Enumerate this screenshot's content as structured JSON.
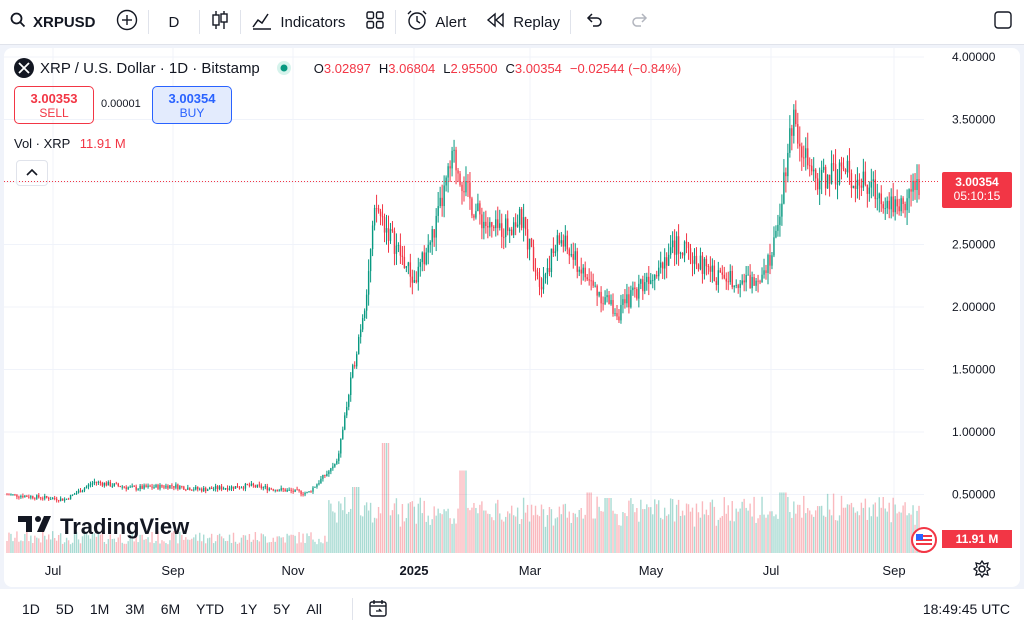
{
  "toolbar": {
    "symbol": "XRPUSD",
    "interval": "D",
    "indicators_label": "Indicators",
    "alert_label": "Alert",
    "replay_label": "Replay"
  },
  "legend": {
    "title": "XRP / U.S. Dollar · 1D · Bitstamp",
    "o_label": "O",
    "o_value": "3.02897",
    "h_label": "H",
    "h_value": "3.06804",
    "l_label": "L",
    "l_value": "2.95500",
    "c_label": "C",
    "c_value": "3.00354",
    "change": "−0.02544 (−0.84%)"
  },
  "trade": {
    "sell_price": "3.00353",
    "sell_label": "SELL",
    "spread": "0.00001",
    "buy_price": "3.00354",
    "buy_label": "BUY"
  },
  "volume": {
    "label": "Vol · XRP",
    "value": "11.91 M"
  },
  "branding": {
    "logo_text": "TradingView"
  },
  "price_label": {
    "price": "3.00354",
    "countdown": "05:10:15"
  },
  "volume_label": "11.91 M",
  "timeframes": [
    "1D",
    "5D",
    "1M",
    "3M",
    "6M",
    "YTD",
    "1Y",
    "5Y",
    "All"
  ],
  "clock": "18:49:45 UTC",
  "colors": {
    "up": "#089981",
    "down": "#f23645",
    "accent": "#2962ff"
  },
  "chart_data": {
    "type": "candlestick",
    "y_ticks": [
      "4.00000",
      "3.50000",
      "3.00000",
      "2.50000",
      "2.00000",
      "1.50000",
      "1.00000",
      "0.50000"
    ],
    "x_ticks": [
      "Jul",
      "Sep",
      "Nov",
      "2025",
      "Mar",
      "May",
      "Jul",
      "Sep"
    ],
    "ylim": [
      0.0,
      4.0
    ],
    "last_price": 3.00354,
    "keypoints": [
      {
        "x": 0.0,
        "y": 0.5
      },
      {
        "x": 0.06,
        "y": 0.46
      },
      {
        "x": 0.09,
        "y": 0.6
      },
      {
        "x": 0.13,
        "y": 0.55
      },
      {
        "x": 0.17,
        "y": 0.57
      },
      {
        "x": 0.2,
        "y": 0.54
      },
      {
        "x": 0.25,
        "y": 0.57
      },
      {
        "x": 0.31,
        "y": 0.51
      },
      {
        "x": 0.34,
        "y": 0.75
      },
      {
        "x": 0.37,
        "y": 2.1
      },
      {
        "x": 0.38,
        "y": 2.8
      },
      {
        "x": 0.42,
        "y": 2.2
      },
      {
        "x": 0.44,
        "y": 2.6
      },
      {
        "x": 0.46,
        "y": 3.2
      },
      {
        "x": 0.48,
        "y": 2.8
      },
      {
        "x": 0.5,
        "y": 2.6
      },
      {
        "x": 0.53,
        "y": 2.7
      },
      {
        "x": 0.55,
        "y": 2.2
      },
      {
        "x": 0.57,
        "y": 2.55
      },
      {
        "x": 0.6,
        "y": 2.2
      },
      {
        "x": 0.63,
        "y": 1.95
      },
      {
        "x": 0.65,
        "y": 2.15
      },
      {
        "x": 0.69,
        "y": 2.5
      },
      {
        "x": 0.73,
        "y": 2.25
      },
      {
        "x": 0.77,
        "y": 2.2
      },
      {
        "x": 0.79,
        "y": 2.45
      },
      {
        "x": 0.81,
        "y": 3.55
      },
      {
        "x": 0.83,
        "y": 3.0
      },
      {
        "x": 0.86,
        "y": 3.1
      },
      {
        "x": 0.88,
        "y": 3.0
      },
      {
        "x": 0.9,
        "y": 2.9
      },
      {
        "x": 0.92,
        "y": 2.8
      },
      {
        "x": 0.94,
        "y": 3.0
      }
    ],
    "volume_spikes": [
      {
        "x": 0.39,
        "v": 1.0
      },
      {
        "x": 0.47,
        "v": 0.75
      },
      {
        "x": 0.6,
        "v": 0.55
      },
      {
        "x": 0.8,
        "v": 0.55
      },
      {
        "x": 0.36,
        "v": 0.6
      },
      {
        "x": 0.62,
        "v": 0.5
      }
    ]
  }
}
